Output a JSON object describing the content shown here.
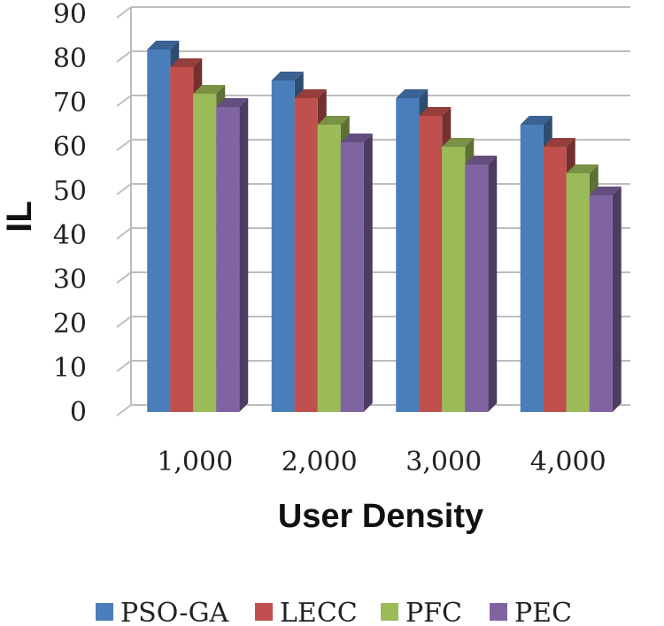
{
  "chart_data": {
    "type": "bar",
    "title": "",
    "xlabel": "User Density",
    "ylabel": "IL",
    "categories": [
      "1,000",
      "2,000",
      "3,000",
      "4,000"
    ],
    "ylim": [
      0,
      90
    ],
    "yticks": [
      0,
      10,
      20,
      30,
      40,
      50,
      60,
      70,
      80,
      90
    ],
    "yticks_label": [
      "0",
      "10",
      "20",
      "30",
      "40",
      "50",
      "60",
      "70",
      "80",
      "90"
    ],
    "grid": true,
    "legend_position": "bottom",
    "series": [
      {
        "name": "PSO-GA",
        "color": "#4a7ebb",
        "values": [
          82,
          75,
          71,
          65
        ]
      },
      {
        "name": "LECC",
        "color": "#c0504d",
        "values": [
          78,
          71,
          67,
          60
        ]
      },
      {
        "name": "PFC",
        "color": "#9bbb59",
        "values": [
          72,
          65,
          60,
          54
        ]
      },
      {
        "name": "PEC",
        "color": "#8064a2",
        "values": [
          69,
          61,
          56,
          49
        ]
      }
    ]
  }
}
